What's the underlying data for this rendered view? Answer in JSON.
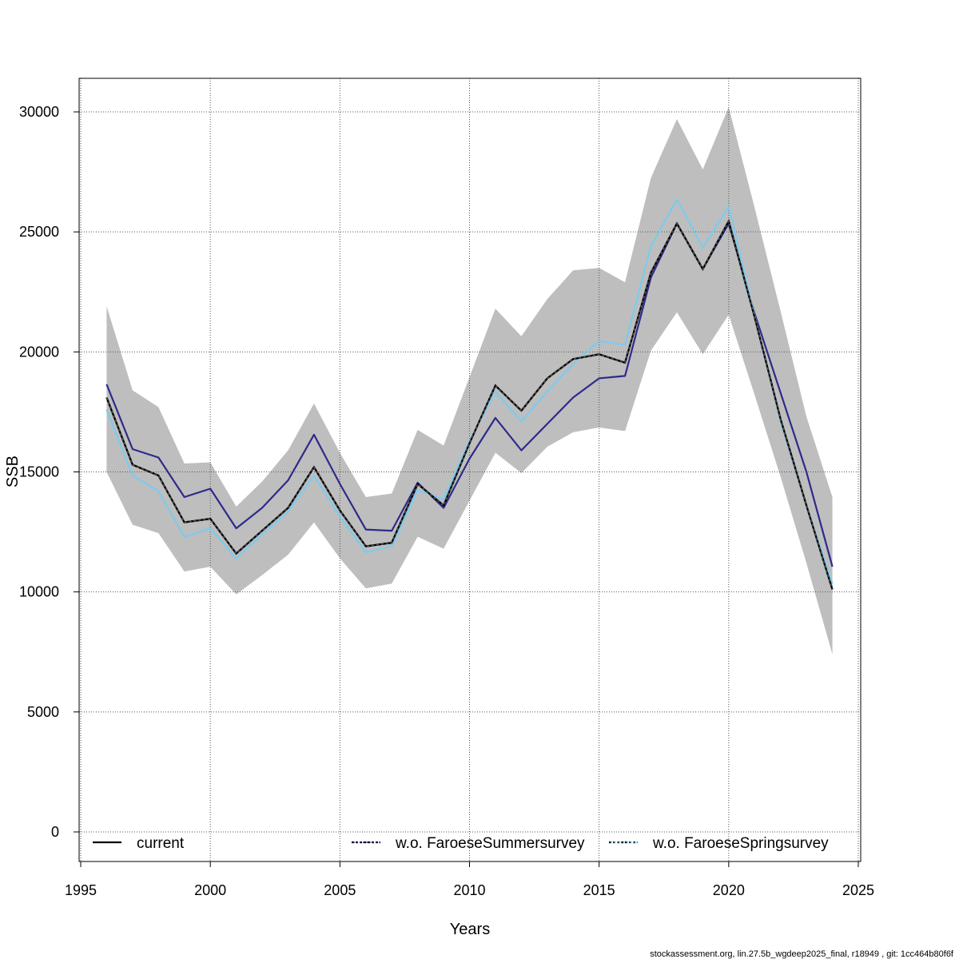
{
  "chart_data": {
    "type": "line",
    "xlabel": "Years",
    "ylabel": "SSB",
    "xlim": [
      1995,
      2025
    ],
    "ylim": [
      -1200,
      31400
    ],
    "xticks": [
      1995,
      2000,
      2005,
      2010,
      2015,
      2020,
      2025
    ],
    "yticks": [
      0,
      5000,
      10000,
      15000,
      20000,
      25000,
      30000
    ],
    "grid": true,
    "legend_position": "bottom",
    "x": [
      1996,
      1997,
      1998,
      1999,
      2000,
      2001,
      2002,
      2003,
      2004,
      2005,
      2006,
      2007,
      2008,
      2009,
      2010,
      2011,
      2012,
      2013,
      2014,
      2015,
      2016,
      2017,
      2018,
      2019,
      2020,
      2021,
      2022,
      2023,
      2024
    ],
    "band": {
      "color": "#bebebe",
      "lower": [
        15000,
        12800,
        12450,
        10850,
        11050,
        9900,
        10700,
        11550,
        12900,
        11400,
        10150,
        10350,
        12300,
        11800,
        13800,
        15800,
        14950,
        16050,
        16650,
        16850,
        16700,
        20050,
        21650,
        19900,
        21550,
        18200,
        14800,
        11200,
        7400
      ],
      "upper": [
        21900,
        18400,
        17700,
        15350,
        15400,
        13550,
        14600,
        15900,
        17850,
        15800,
        13950,
        14100,
        16750,
        16100,
        18950,
        21800,
        20650,
        22200,
        23400,
        23500,
        22900,
        27250,
        29700,
        27600,
        30200,
        26000,
        21700,
        17300,
        13950
      ]
    },
    "series": [
      {
        "name": "current",
        "color": "#000000",
        "dash": "none",
        "values": [
          18100,
          15300,
          14850,
          12900,
          13050,
          11600,
          12550,
          13500,
          15200,
          13400,
          11900,
          12050,
          14500,
          13600,
          16200,
          18600,
          17550,
          18900,
          19700,
          19900,
          19550,
          23300,
          25350,
          23450,
          25450,
          21450,
          17200,
          13600,
          10100
        ]
      },
      {
        "name": "w.o. FaroeseSummersurvey",
        "color": "#2e2a8a",
        "dash": "none",
        "values": [
          18650,
          15950,
          15600,
          13950,
          14300,
          12650,
          13500,
          14650,
          16550,
          14500,
          12600,
          12550,
          14550,
          13500,
          15550,
          17250,
          15900,
          17000,
          18100,
          18900,
          19000,
          23100,
          25350,
          23450,
          25350,
          21600,
          18300,
          15000,
          11050
        ]
      },
      {
        "name": "w.o. FaroeseSpringsurvey",
        "color": "#7ccbee",
        "dash": "none",
        "values": [
          17600,
          14850,
          14200,
          12300,
          12650,
          11400,
          12400,
          13350,
          14850,
          13150,
          11650,
          11900,
          14250,
          13850,
          16300,
          18350,
          17100,
          18350,
          19500,
          20450,
          20300,
          24400,
          26350,
          24350,
          26050,
          21500,
          17100,
          13600,
          10350
        ]
      }
    ],
    "overlay_dashed": {
      "color": "#555555",
      "dash": "3,3",
      "values": [
        18100,
        15300,
        14850,
        12900,
        13050,
        11600,
        12550,
        13500,
        15200,
        13400,
        11900,
        12050,
        14500,
        13600,
        16200,
        18600,
        17550,
        18900,
        19700,
        19900,
        19550,
        23300,
        25350,
        23450,
        25450,
        21450,
        17200,
        13600,
        10100
      ]
    }
  },
  "legend": {
    "items": [
      {
        "label": "current",
        "color": "#000000",
        "dash": "none",
        "dot_color": ""
      },
      {
        "label": "w.o. FaroeseSummersurvey",
        "color": "#000000",
        "dash": "3,2",
        "dot_color": "#2e2a8a"
      },
      {
        "label": "w.o. FaroeseSpringsurvey",
        "color": "#000000",
        "dash": "3,2",
        "dot_color": "#7ccbee"
      }
    ]
  },
  "footer": "stockassessment.org, lin.27.5b_wgdeep2025_final, r18949 , git: 1cc464b80f6f"
}
